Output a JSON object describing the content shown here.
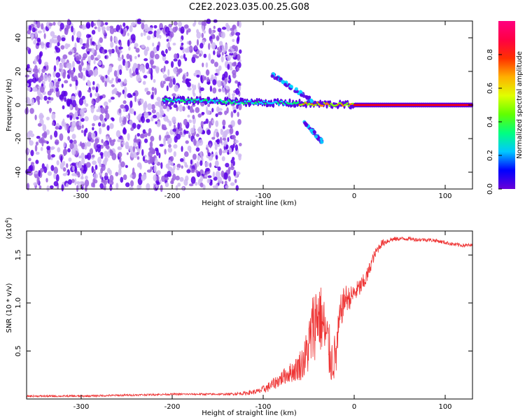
{
  "figure_title": "C2E2.2023.035.00.25.G08",
  "chart_data": [
    {
      "type": "heatmap",
      "xlabel": "Height of straight line (km)",
      "ylabel": "Frequency (Hz)",
      "xlim": [
        -360,
        130
      ],
      "ylim": [
        -50,
        50
      ],
      "x_ticks": [
        -300,
        -200,
        -100,
        0,
        100
      ],
      "y_ticks": [
        -40,
        -20,
        0,
        20,
        40
      ],
      "colorbar": {
        "label": "Normalized spectral amplitude",
        "range": [
          0.0,
          1.0
        ],
        "ticks": [
          0.0,
          0.2,
          0.4,
          0.6,
          0.8
        ],
        "colormap": [
          "#ffffff",
          "#cfb8f2",
          "#9a5fe0",
          "#5a00e6",
          "#0000ff",
          "#00d8ff",
          "#00ff66",
          "#80ff00",
          "#ffff00",
          "#ff8000",
          "#ff0000",
          "#ff0066"
        ]
      },
      "features": {
        "scatter_region_x": [
          -360,
          -125
        ],
        "line_start_x": -210,
        "line_freq_start": 3,
        "line_freq_end": 0,
        "upper_branch": {
          "x": [
            -90,
            -45
          ],
          "y": [
            18,
            2
          ]
        },
        "lower_branch": {
          "x": [
            -55,
            -35
          ],
          "y": [
            -10,
            -22
          ]
        }
      }
    },
    {
      "type": "line",
      "xlabel": "Height of straight line (km)",
      "ylabel": "SNR (10 * v/v)",
      "xlim": [
        -360,
        130
      ],
      "ylim": [
        0,
        1.75
      ],
      "x_ticks": [
        -300,
        -200,
        -100,
        0,
        100
      ],
      "y_ticks": [
        0.5,
        1.0,
        1.5
      ],
      "y_tick_labels": [
        "0.5",
        "1.0",
        "1.5"
      ],
      "multiplier_base": "(x10",
      "multiplier_exp": "4",
      "multiplier_close": ")",
      "color": "#ee3333",
      "x": [
        -360,
        -300,
        -200,
        -140,
        -120,
        -105,
        -95,
        -85,
        -75,
        -65,
        -55,
        -50,
        -45,
        -40,
        -35,
        -30,
        -25,
        -20,
        -15,
        -10,
        -5,
        0,
        5,
        10,
        15,
        20,
        25,
        30,
        40,
        50,
        60,
        70,
        80,
        90,
        100,
        110,
        120,
        130
      ],
      "y": [
        0.03,
        0.03,
        0.05,
        0.05,
        0.06,
        0.08,
        0.12,
        0.18,
        0.25,
        0.3,
        0.4,
        0.55,
        0.75,
        0.9,
        0.8,
        0.6,
        0.4,
        0.45,
        0.9,
        1.05,
        1.05,
        1.1,
        1.15,
        1.2,
        1.3,
        1.45,
        1.55,
        1.62,
        1.66,
        1.67,
        1.67,
        1.66,
        1.66,
        1.65,
        1.63,
        1.61,
        1.6,
        1.6
      ],
      "noise_amplitude": [
        0.01,
        0.01,
        0.01,
        0.01,
        0.02,
        0.03,
        0.05,
        0.07,
        0.09,
        0.12,
        0.2,
        0.3,
        0.4,
        0.4,
        0.35,
        0.35,
        0.25,
        0.25,
        0.18,
        0.15,
        0.12,
        0.1,
        0.1,
        0.1,
        0.08,
        0.06,
        0.05,
        0.04,
        0.03,
        0.02,
        0.02,
        0.02,
        0.02,
        0.02,
        0.02,
        0.02,
        0.02,
        0.02
      ]
    }
  ]
}
